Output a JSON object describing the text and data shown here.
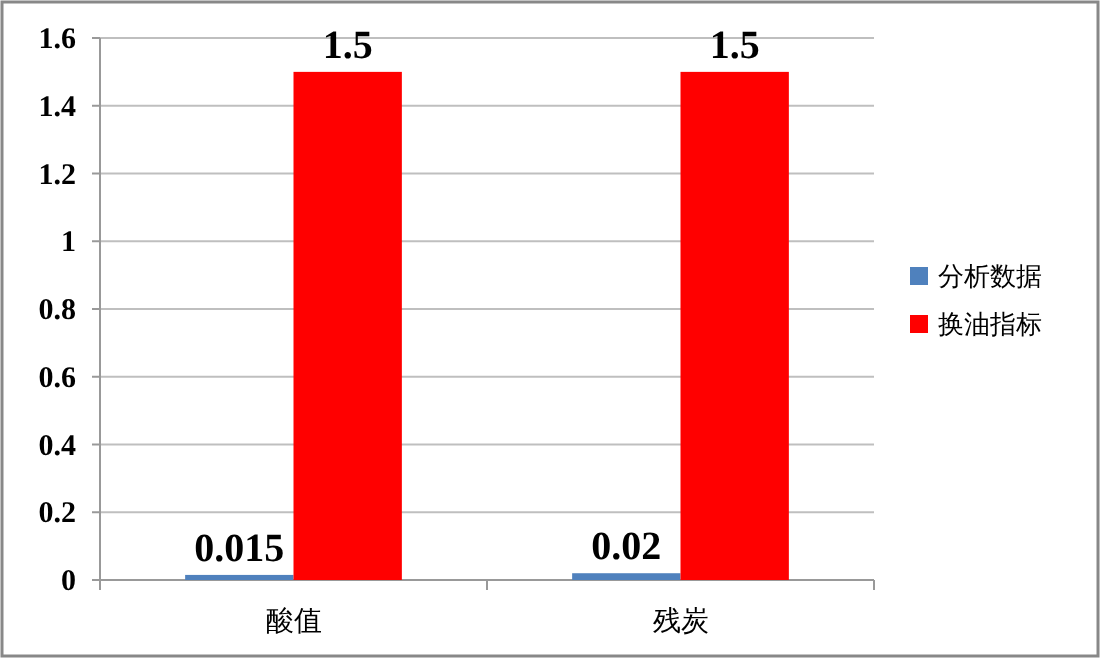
{
  "chart_data": {
    "type": "bar",
    "categories": [
      "酸值",
      "残炭"
    ],
    "series": [
      {
        "name": "分析数据",
        "color": "#4f81bd",
        "values": [
          0.015,
          0.02
        ]
      },
      {
        "name": "换油指标",
        "color": "#ff0000",
        "values": [
          1.5,
          1.5
        ]
      }
    ],
    "ylim": [
      0,
      1.6
    ],
    "yticks": [
      0,
      0.2,
      0.4,
      0.6,
      0.8,
      1,
      1.2,
      1.4,
      1.6
    ],
    "grid": "y",
    "legend": "right",
    "data_labels": true
  }
}
